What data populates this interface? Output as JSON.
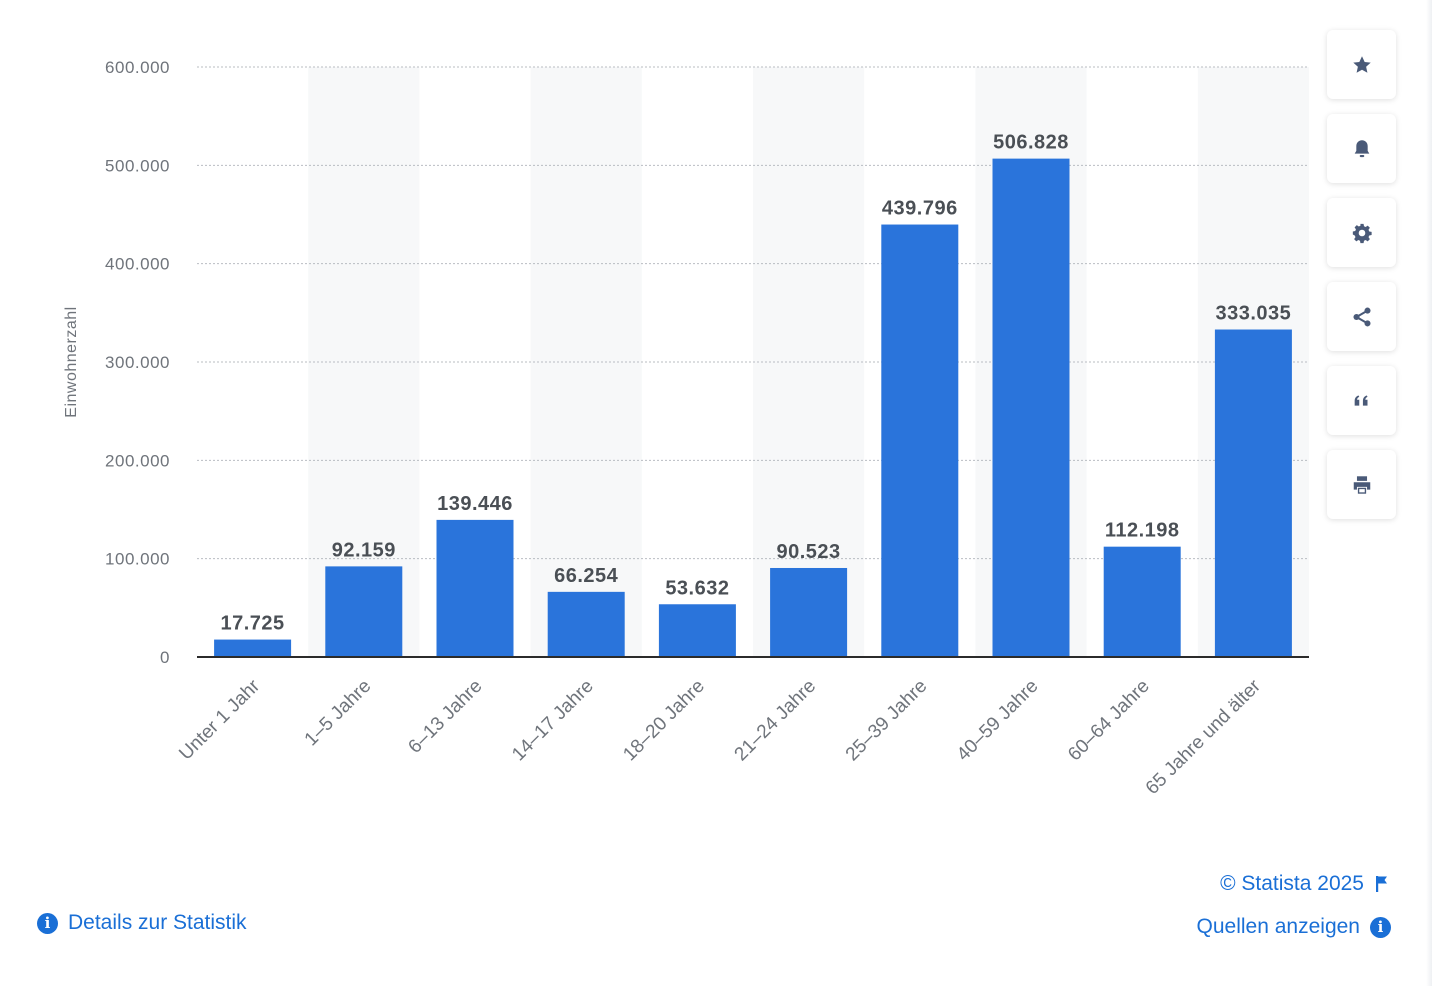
{
  "chart_data": {
    "type": "bar",
    "categories": [
      "Unter 1 Jahr",
      "1–5 Jahre",
      "6–13 Jahre",
      "14–17 Jahre",
      "18–20 Jahre",
      "21–24 Jahre",
      "25–39 Jahre",
      "40–59 Jahre",
      "60–64 Jahre",
      "65 Jahre und älter"
    ],
    "values": [
      17725,
      92159,
      139446,
      66254,
      53632,
      90523,
      439796,
      506828,
      112198,
      333035
    ],
    "value_labels": [
      "17.725",
      "92.159",
      "139.446",
      "66.254",
      "53.632",
      "90.523",
      "439.796",
      "506.828",
      "112.198",
      "333.035"
    ],
    "yticks": [
      0,
      100000,
      200000,
      300000,
      400000,
      500000,
      600000
    ],
    "ytick_labels": [
      "0",
      "100.000",
      "200.000",
      "300.000",
      "400.000",
      "500.000",
      "600.000"
    ],
    "ylim": [
      0,
      600000
    ],
    "ylabel": "Einwohnerzahl",
    "xlabel": "",
    "title": "",
    "grid": true,
    "bar_color": "#2a74db"
  },
  "toolbar": {
    "buttons": [
      {
        "name": "favorite-button",
        "icon": "star-icon"
      },
      {
        "name": "notification-button",
        "icon": "bell-icon"
      },
      {
        "name": "settings-button",
        "icon": "gear-icon"
      },
      {
        "name": "share-button",
        "icon": "share-icon"
      },
      {
        "name": "cite-button",
        "icon": "quote-icon"
      },
      {
        "name": "print-button",
        "icon": "printer-icon"
      }
    ]
  },
  "footer": {
    "details_label": "Details zur Statistik",
    "copyright": "© Statista 2025",
    "sources_label": "Quellen anzeigen"
  },
  "colors": {
    "accent": "#1a6fd6",
    "bar": "#2a74db",
    "icon": "#4a5a78"
  }
}
